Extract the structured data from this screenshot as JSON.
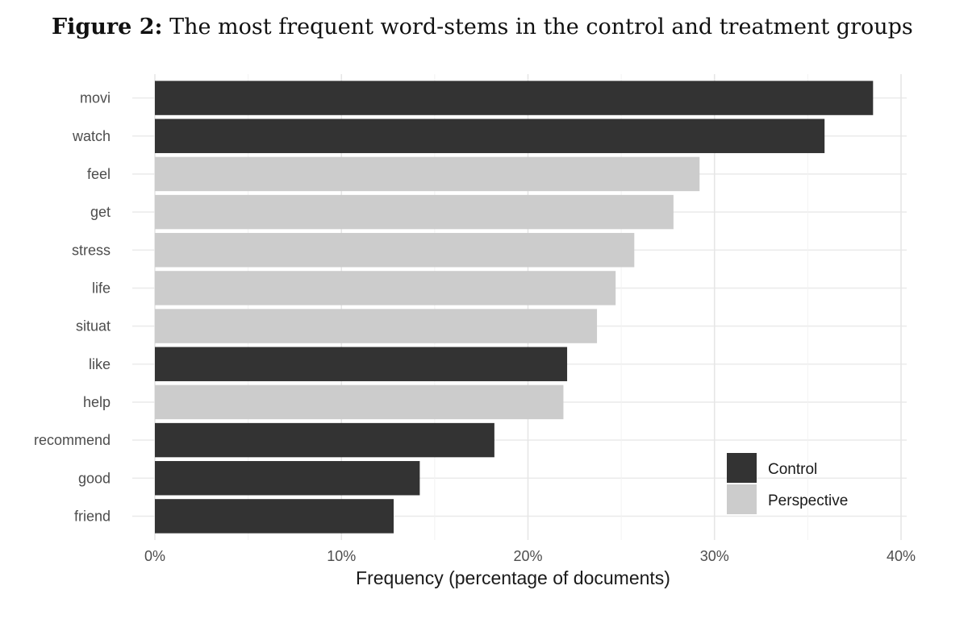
{
  "caption": {
    "label": "Figure 2:",
    "text": "The most frequent word-stems in the control and treatment groups"
  },
  "chart_data": {
    "type": "bar",
    "orientation": "horizontal",
    "xlabel": "Frequency (percentage of documents)",
    "ylabel": "",
    "xlim": [
      0,
      40
    ],
    "x_ticks": [
      0,
      10,
      20,
      30,
      40
    ],
    "x_tick_labels": [
      "0%",
      "10%",
      "20%",
      "30%",
      "40%"
    ],
    "grid": true,
    "legend_position": "bottom-right",
    "categories": [
      "movi",
      "watch",
      "feel",
      "get",
      "stress",
      "life",
      "situat",
      "like",
      "help",
      "recommend",
      "good",
      "friend"
    ],
    "values": [
      38.5,
      35.9,
      29.2,
      27.8,
      25.7,
      24.7,
      23.7,
      22.1,
      21.9,
      18.2,
      14.2,
      12.8
    ],
    "groups": [
      "Control",
      "Control",
      "Perspective",
      "Perspective",
      "Perspective",
      "Perspective",
      "Perspective",
      "Control",
      "Perspective",
      "Control",
      "Control",
      "Control"
    ],
    "legend": [
      {
        "name": "Control",
        "color": "#333333"
      },
      {
        "name": "Perspective",
        "color": "#cccccc"
      }
    ]
  }
}
